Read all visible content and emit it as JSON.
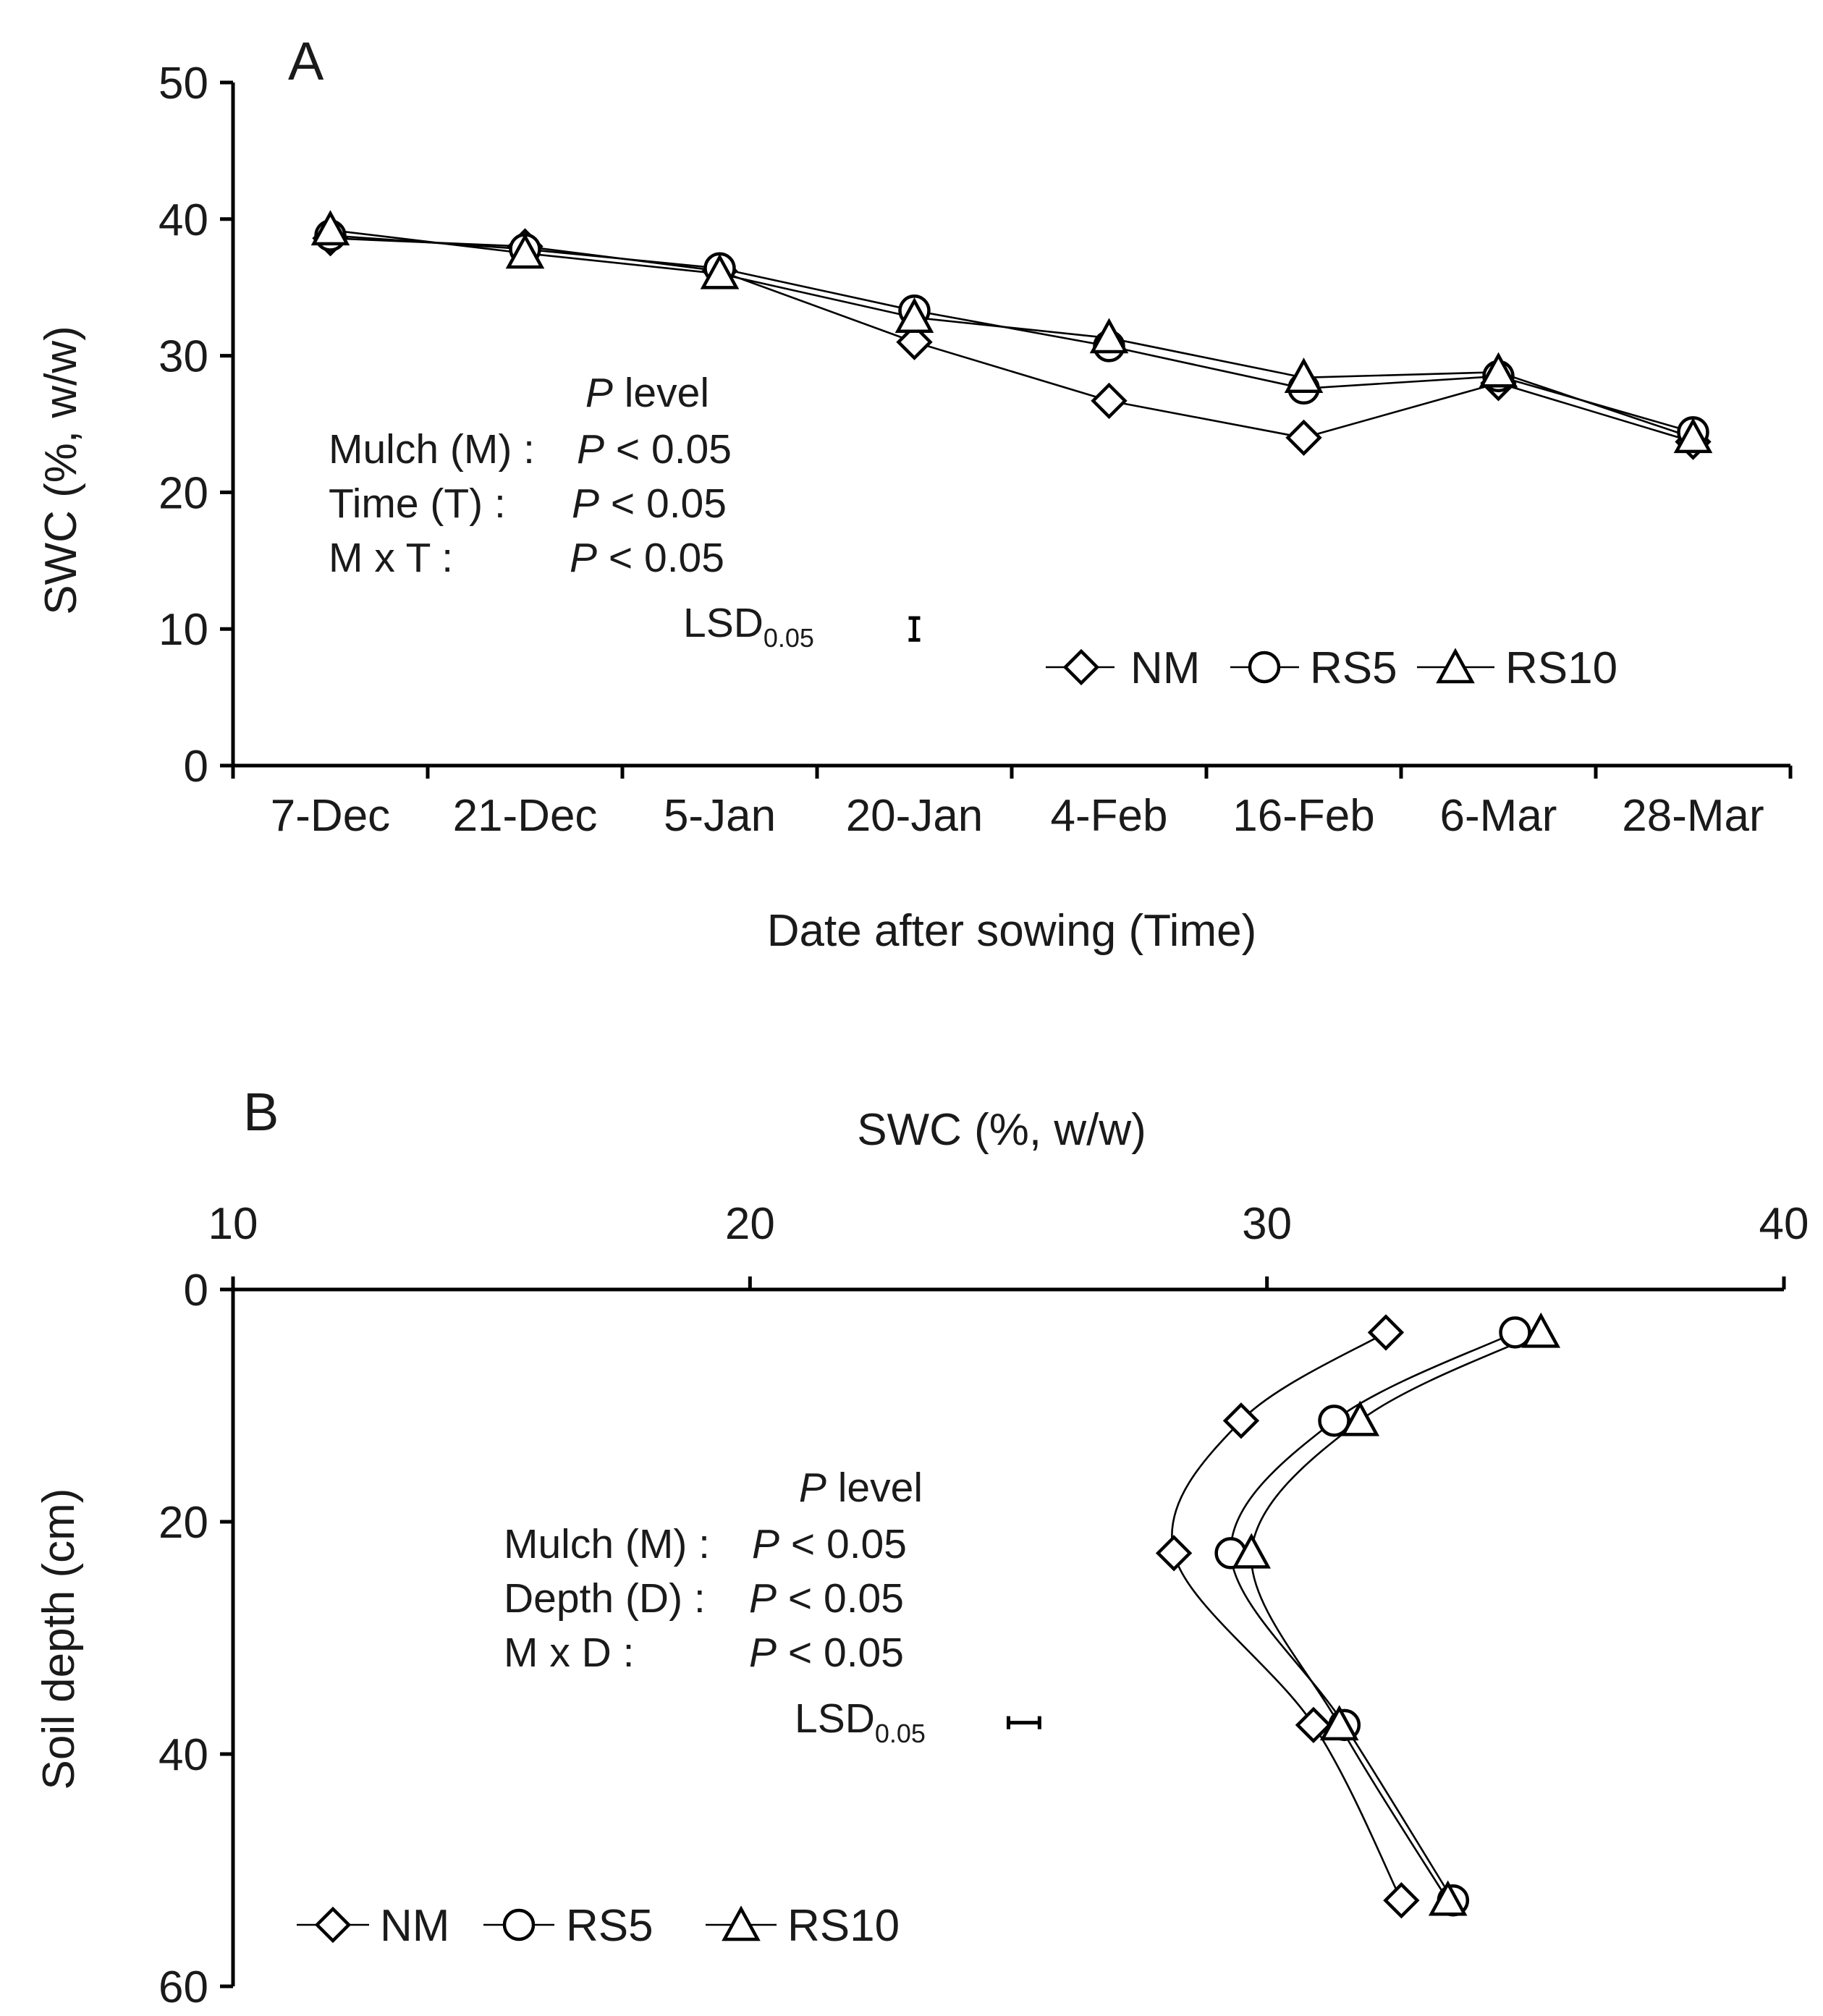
{
  "chart_data": [
    {
      "panel": "A",
      "type": "line",
      "title": "",
      "xlabel": "Date after sowing (Time)",
      "ylabel": "SWC (%, w/w)",
      "categories": [
        "7-Dec",
        "21-Dec",
        "5-Jan",
        "20-Jan",
        "4-Feb",
        "16-Feb",
        "6-Mar",
        "28-Mar"
      ],
      "ylim": [
        0,
        50
      ],
      "yticks": [
        "0",
        "10",
        "20",
        "30",
        "40",
        "50"
      ],
      "grid": false,
      "series": [
        {
          "name": "NM",
          "marker": "diamond",
          "values": [
            38.6,
            38.0,
            36.2,
            31.0,
            26.7,
            24.0,
            28.0,
            23.7
          ]
        },
        {
          "name": "RS5",
          "marker": "circle",
          "values": [
            38.8,
            37.8,
            36.4,
            33.3,
            30.7,
            27.6,
            28.5,
            24.4
          ]
        },
        {
          "name": "RS10",
          "marker": "triangle",
          "values": [
            39.2,
            37.5,
            36.0,
            32.8,
            31.3,
            28.4,
            28.8,
            24.0
          ]
        }
      ],
      "legend": {
        "placement": "bottom-right",
        "labels": [
          "NM",
          "RS5",
          "RS10"
        ]
      },
      "stats": {
        "header_italic": "P",
        "header_rest": " level",
        "rows": [
          {
            "label": "Mulch (M) :",
            "p": "P",
            "rest": " < 0.05"
          },
          {
            "label": "Time (T)   :",
            "p": "P",
            "rest": " < 0.05"
          },
          {
            "label": "M x T       :",
            "p": "P",
            "rest": " < 0.05"
          }
        ],
        "lsd_label": "LSD",
        "lsd_sub": "0.05",
        "lsd_center": 10.0,
        "lsd_half_width": 0.8
      }
    },
    {
      "panel": "B",
      "type": "line",
      "title": "",
      "xlabel": "SWC (%, w/w)",
      "ylabel": "Soil depth (cm)",
      "xlim": [
        10,
        40
      ],
      "xticks": [
        "10",
        "20",
        "30",
        "40"
      ],
      "ylim": [
        0,
        60
      ],
      "yticks": [
        "0",
        "20",
        "40",
        "60"
      ],
      "grid": false,
      "series": [
        {
          "name": "NM",
          "marker": "diamond",
          "x": [
            32.3,
            29.5,
            28.2,
            30.9,
            32.6
          ],
          "y": [
            3.7,
            11.3,
            22.7,
            37.5,
            52.6
          ]
        },
        {
          "name": "RS5",
          "marker": "circle",
          "x": [
            34.8,
            31.3,
            29.3,
            31.5,
            33.6
          ],
          "y": [
            3.7,
            11.3,
            22.7,
            37.5,
            52.6
          ]
        },
        {
          "name": "RS10",
          "marker": "triangle",
          "x": [
            35.3,
            31.8,
            29.7,
            31.4,
            33.5
          ],
          "y": [
            3.7,
            11.3,
            22.7,
            37.5,
            52.6
          ]
        }
      ],
      "legend": {
        "placement": "bottom-left",
        "labels": [
          "NM",
          "RS5",
          "RS10"
        ]
      },
      "stats": {
        "header_italic": "P",
        "header_rest": " level",
        "rows": [
          {
            "label": "Mulch (M) :",
            "p": "P",
            "rest": " < 0.05"
          },
          {
            "label": "Depth (D) :",
            "p": "P",
            "rest": " < 0.05"
          },
          {
            "label": "M x D       :",
            "p": "P",
            "rest": " < 0.05"
          }
        ],
        "lsd_label": "LSD",
        "lsd_sub": "0.05",
        "lsd_center_x": 25.3,
        "lsd_half_width": 0.3,
        "lsd_depth": 37.3
      }
    }
  ]
}
